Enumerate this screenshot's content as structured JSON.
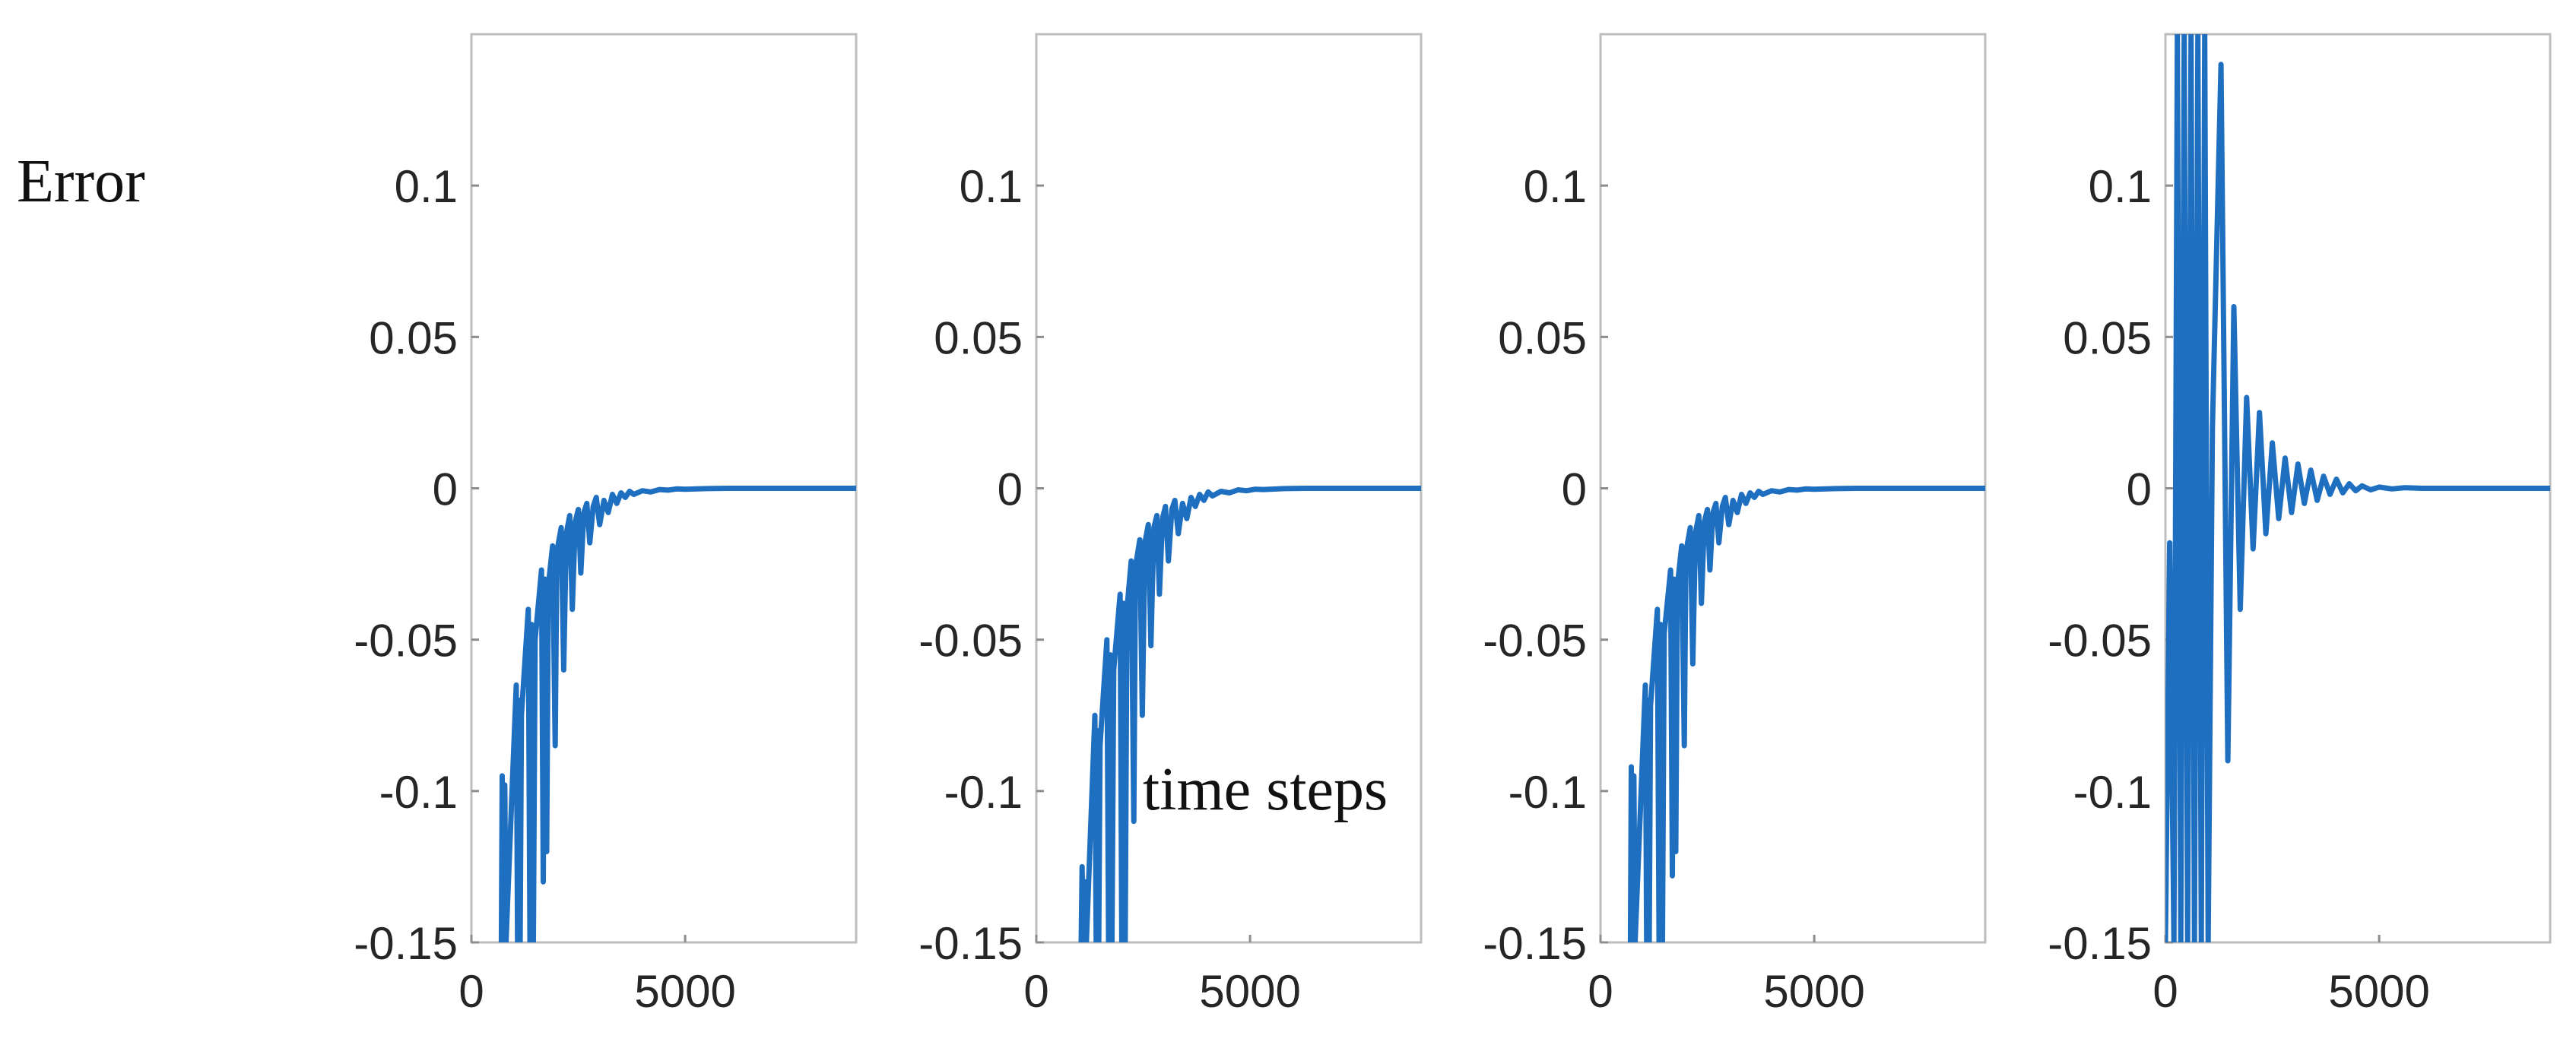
{
  "figure": {
    "ylabel": "Error",
    "xlabel": "time steps"
  },
  "chart_data": [
    {
      "type": "line",
      "panel": 1,
      "xlim": [
        0,
        9000
      ],
      "ylim": [
        -0.15,
        0.15
      ],
      "xticks": [
        0,
        5000
      ],
      "xtick_labels": [
        "0",
        "5000"
      ],
      "yticks": [
        0.1,
        0.05,
        0,
        -0.05,
        -0.1,
        -0.15
      ],
      "ytick_labels": [
        "0.1",
        "0.05",
        "0",
        "-0.05",
        "-0.1",
        "-0.15"
      ],
      "series": [
        {
          "x": [
            700,
            720,
            750,
            780,
            810,
            1050,
            1080,
            1110,
            1140,
            1170,
            1330,
            1370,
            1410,
            1450,
            1490,
            1640,
            1680,
            1720,
            1760,
            1800,
            1900,
            1960,
            2000,
            2100,
            2160,
            2220,
            2300,
            2360,
            2430,
            2500,
            2560,
            2630,
            2700,
            2770,
            2850,
            2920,
            3000,
            3100,
            3200,
            3300,
            3400,
            3500,
            3600,
            3700,
            3800,
            4000,
            4200,
            4400,
            4600,
            4800,
            5000,
            5500,
            6000,
            7000,
            8000,
            9000
          ],
          "y": [
            -0.15,
            -0.095,
            -0.15,
            -0.098,
            -0.15,
            -0.065,
            -0.15,
            -0.07,
            -0.15,
            -0.075,
            -0.04,
            -0.15,
            -0.045,
            -0.15,
            -0.05,
            -0.027,
            -0.13,
            -0.03,
            -0.12,
            -0.032,
            -0.019,
            -0.085,
            -0.021,
            -0.013,
            -0.06,
            -0.015,
            -0.009,
            -0.04,
            -0.011,
            -0.007,
            -0.028,
            -0.008,
            -0.005,
            -0.018,
            -0.006,
            -0.003,
            -0.012,
            -0.004,
            -0.008,
            -0.002,
            -0.005,
            -0.0015,
            -0.003,
            -0.001,
            -0.002,
            -0.0008,
            -0.0012,
            -0.0004,
            -0.0006,
            -0.0002,
            -0.0003,
            -0.0001,
            0,
            0,
            0,
            0
          ]
        }
      ]
    },
    {
      "type": "line",
      "panel": 2,
      "xlim": [
        0,
        9000
      ],
      "ylim": [
        -0.15,
        0.15
      ],
      "xticks": [
        0,
        5000
      ],
      "xtick_labels": [
        "0",
        "5000"
      ],
      "yticks": [
        0.1,
        0.05,
        0,
        -0.05,
        -0.1,
        -0.15
      ],
      "ytick_labels": [
        "0.1",
        "0.05",
        "0",
        "-0.05",
        "-0.1",
        "-0.15"
      ],
      "series": [
        {
          "x": [
            1050,
            1070,
            1100,
            1140,
            1170,
            1370,
            1400,
            1430,
            1460,
            1490,
            1650,
            1690,
            1730,
            1770,
            1810,
            1960,
            2000,
            2040,
            2080,
            2120,
            2220,
            2280,
            2320,
            2420,
            2480,
            2540,
            2620,
            2680,
            2750,
            2820,
            2880,
            2950,
            3020,
            3090,
            3170,
            3240,
            3320,
            3420,
            3520,
            3620,
            3720,
            3820,
            3920,
            4020,
            4120,
            4320,
            4520,
            4720,
            4920,
            5120,
            5320,
            5800,
            6300,
            7000,
            8000,
            9000
          ],
          "y": [
            -0.15,
            -0.125,
            -0.15,
            -0.13,
            -0.15,
            -0.075,
            -0.15,
            -0.08,
            -0.15,
            -0.085,
            -0.05,
            -0.15,
            -0.055,
            -0.15,
            -0.06,
            -0.035,
            -0.15,
            -0.038,
            -0.15,
            -0.04,
            -0.024,
            -0.11,
            -0.026,
            -0.017,
            -0.075,
            -0.018,
            -0.012,
            -0.052,
            -0.013,
            -0.009,
            -0.035,
            -0.01,
            -0.006,
            -0.024,
            -0.007,
            -0.004,
            -0.015,
            -0.005,
            -0.01,
            -0.003,
            -0.006,
            -0.002,
            -0.004,
            -0.0012,
            -0.0025,
            -0.001,
            -0.0015,
            -0.0005,
            -0.0008,
            -0.0003,
            -0.0004,
            -0.0001,
            0,
            0,
            0,
            0
          ]
        }
      ]
    },
    {
      "type": "line",
      "panel": 3,
      "xlim": [
        0,
        9000
      ],
      "ylim": [
        -0.15,
        0.15
      ],
      "xticks": [
        0,
        5000
      ],
      "xtick_labels": [
        "0",
        "5000"
      ],
      "yticks": [
        0.1,
        0.05,
        0,
        -0.05,
        -0.1,
        -0.15
      ],
      "ytick_labels": [
        "0.1",
        "0.05",
        "0",
        "-0.05",
        "-0.1",
        "-0.15"
      ],
      "series": [
        {
          "x": [
            700,
            720,
            750,
            780,
            810,
            1050,
            1080,
            1110,
            1140,
            1170,
            1330,
            1370,
            1410,
            1450,
            1490,
            1640,
            1680,
            1720,
            1760,
            1800,
            1900,
            1960,
            2000,
            2100,
            2160,
            2220,
            2300,
            2360,
            2430,
            2500,
            2560,
            2630,
            2700,
            2770,
            2850,
            2920,
            3000,
            3100,
            3200,
            3300,
            3400,
            3500,
            3600,
            3700,
            3800,
            4000,
            4200,
            4400,
            4600,
            4800,
            5000,
            5500,
            6000,
            7000,
            8000,
            9000
          ],
          "y": [
            -0.15,
            -0.092,
            -0.15,
            -0.095,
            -0.15,
            -0.065,
            -0.15,
            -0.07,
            -0.15,
            -0.072,
            -0.04,
            -0.15,
            -0.045,
            -0.15,
            -0.048,
            -0.027,
            -0.128,
            -0.03,
            -0.12,
            -0.032,
            -0.019,
            -0.085,
            -0.021,
            -0.013,
            -0.058,
            -0.015,
            -0.009,
            -0.038,
            -0.011,
            -0.007,
            -0.027,
            -0.008,
            -0.005,
            -0.018,
            -0.006,
            -0.003,
            -0.012,
            -0.004,
            -0.008,
            -0.002,
            -0.005,
            -0.0015,
            -0.003,
            -0.001,
            -0.002,
            -0.0008,
            -0.0012,
            -0.0004,
            -0.0006,
            -0.0002,
            -0.0003,
            -0.0001,
            0,
            0,
            0,
            0
          ]
        }
      ]
    },
    {
      "type": "line",
      "panel": 4,
      "xlim": [
        0,
        9000
      ],
      "ylim": [
        -0.15,
        0.15
      ],
      "xticks": [
        0,
        5000
      ],
      "xtick_labels": [
        "0",
        "5000"
      ],
      "yticks": [
        0.1,
        0.05,
        0,
        -0.05,
        -0.1,
        -0.15
      ],
      "ytick_labels": [
        "0.1",
        "0.05",
        "0",
        "-0.05",
        "-0.1",
        "-0.15"
      ],
      "series": [
        {
          "x": [
            0,
            100,
            200,
            280,
            360,
            440,
            520,
            600,
            680,
            760,
            840,
            920,
            1000,
            1100,
            1300,
            1460,
            1600,
            1750,
            1900,
            2050,
            2200,
            2350,
            2500,
            2650,
            2800,
            2950,
            3100,
            3250,
            3400,
            3550,
            3700,
            3850,
            4000,
            4150,
            4300,
            4450,
            4600,
            4800,
            5000,
            5300,
            5600,
            6000,
            7000,
            8000,
            9000
          ],
          "y": [
            -0.15,
            -0.018,
            -0.15,
            0.15,
            -0.15,
            0.15,
            -0.15,
            0.15,
            -0.15,
            0.15,
            -0.15,
            0.15,
            -0.15,
            0.02,
            0.14,
            -0.09,
            0.06,
            -0.04,
            0.03,
            -0.02,
            0.025,
            -0.015,
            0.015,
            -0.01,
            0.01,
            -0.008,
            0.008,
            -0.005,
            0.006,
            -0.004,
            0.004,
            -0.002,
            0.003,
            -0.0015,
            0.0015,
            -0.0008,
            0.0008,
            -0.0005,
            0.0004,
            -0.0002,
            0.0002,
            0,
            0,
            0,
            0
          ]
        }
      ]
    }
  ]
}
